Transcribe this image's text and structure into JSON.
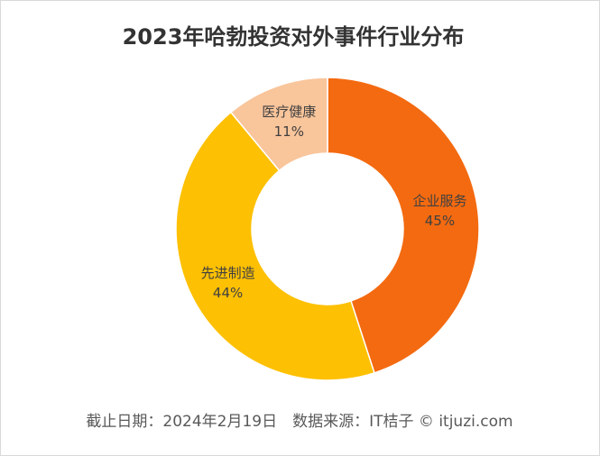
{
  "chart_data": {
    "type": "donut",
    "title": "2023年哈勃投资对外事件行业分布",
    "categories": [
      "企业服务",
      "先进制造",
      "医疗健康"
    ],
    "values": [
      45,
      44,
      11
    ],
    "value_labels": [
      "45%",
      "44%",
      "11%"
    ],
    "colors": [
      "#f46a10",
      "#fdc003",
      "#f9c59b"
    ],
    "source": "截止日期：2024年2月19日　数据来源：IT桔子 © itjuzi.com"
  }
}
